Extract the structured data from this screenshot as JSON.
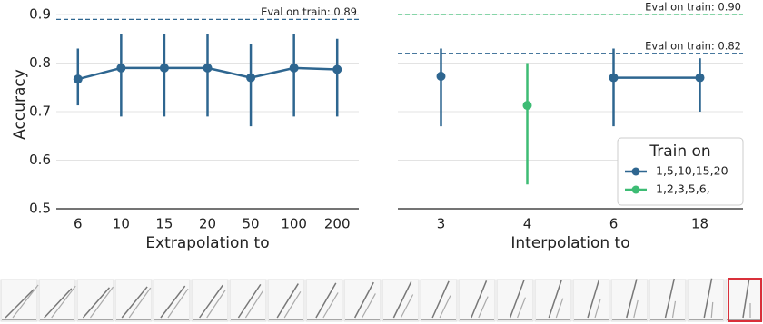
{
  "chart_data": [
    {
      "type": "line",
      "xlabel": "Extrapolation to",
      "ylabel": "Accuracy",
      "categories": [
        "6",
        "10",
        "15",
        "20",
        "50",
        "100",
        "200"
      ],
      "series": [
        {
          "color": "#2e6690",
          "values": [
            0.767,
            0.79,
            0.79,
            0.79,
            0.77,
            0.79,
            0.787
          ],
          "ci_low": [
            0.713,
            0.69,
            0.69,
            0.69,
            0.67,
            0.69,
            0.69
          ],
          "ci_high": [
            0.83,
            0.86,
            0.86,
            0.86,
            0.84,
            0.86,
            0.85
          ]
        }
      ],
      "hlines": [
        {
          "value": 0.89,
          "label": "Eval on train: 0.89",
          "color": "#2e6690"
        }
      ],
      "ylim": [
        0.5,
        0.93
      ],
      "yticks": [
        0.5,
        0.6,
        0.7,
        0.8,
        0.9
      ],
      "yticklabels": true,
      "grid": true
    },
    {
      "type": "line",
      "xlabel": "Interpolation to",
      "categories": [
        "3",
        "4",
        "6",
        "18"
      ],
      "series": [
        {
          "name": "1,5,10,15,20",
          "color": "#2e6690",
          "values": [
            0.773,
            null,
            0.77,
            0.77
          ],
          "ci_low": [
            0.67,
            null,
            0.67,
            0.7
          ],
          "ci_high": [
            0.83,
            null,
            0.83,
            0.81
          ]
        },
        {
          "name": "1,2,3,5,6,",
          "color": "#3dbc74",
          "values": [
            null,
            0.713,
            null,
            null
          ],
          "ci_low": [
            null,
            0.55,
            null,
            null
          ],
          "ci_high": [
            null,
            0.8,
            null,
            null
          ]
        }
      ],
      "hlines": [
        {
          "value": 0.9,
          "label": "Eval on train: 0.90",
          "color": "#3dbc74"
        },
        {
          "value": 0.82,
          "label": "Eval on train: 0.82",
          "color": "#2e6690"
        }
      ],
      "legend": {
        "title": "Train on",
        "loc": "lower right"
      },
      "ylim": [
        0.5,
        0.93
      ],
      "yticks": [
        0.5,
        0.6,
        0.7,
        0.8,
        0.9
      ],
      "yticklabels": false,
      "grid": true
    }
  ]
}
